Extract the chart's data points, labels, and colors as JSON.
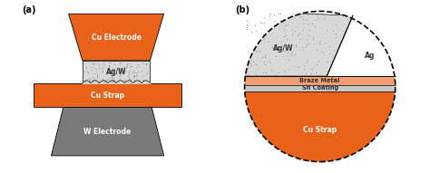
{
  "orange": "#E8621A",
  "orange_light": "#F0A070",
  "gray_dark": "#7A7A7A",
  "gray_light": "#C8C8C8",
  "gray_stipple": "#D8D8D8",
  "white": "#FFFFFF",
  "black": "#000000",
  "label_a": "(a)",
  "label_b": "(b)",
  "cu_electrode_label": "Cu Electrode",
  "agw_label_a": "Ag/W",
  "cu_strap_label_a": "Cu Strap",
  "w_electrode_label": "W Electrode",
  "agw_label_b": "Ag/W",
  "ag_label": "Ag",
  "braze_label": "Braze Metal",
  "sn_label": "Sn Coating",
  "cu_strap_label_b": "Cu Strap"
}
